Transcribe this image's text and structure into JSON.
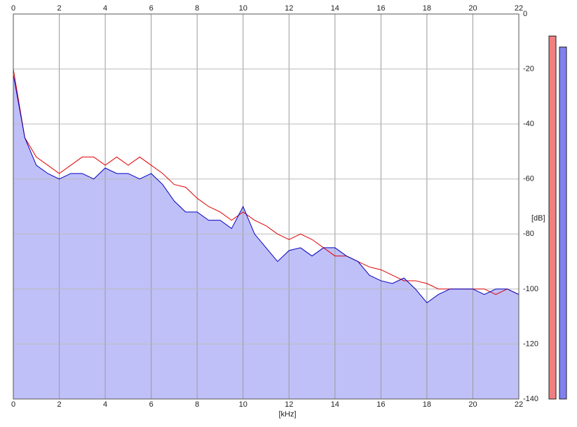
{
  "chart_data": {
    "type": "line",
    "x_label": "[kHz]",
    "y_label": "[dB]",
    "x": [
      0,
      0.5,
      1,
      1.5,
      2,
      2.5,
      3,
      3.5,
      4,
      4.5,
      5,
      5.5,
      6,
      6.5,
      7,
      7.5,
      8,
      8.5,
      9,
      9.5,
      10,
      10.5,
      11,
      11.5,
      12,
      12.5,
      13,
      13.5,
      14,
      14.5,
      15,
      15.5,
      16,
      16.5,
      17,
      17.5,
      18,
      18.5,
      19,
      19.5,
      20,
      20.5,
      21,
      21.5,
      22
    ],
    "series": [
      {
        "color": "#e00000",
        "values": [
          -20,
          -45,
          -52,
          -55,
          -58,
          -55,
          -52,
          -52,
          -55,
          -52,
          -55,
          -52,
          -55,
          -58,
          -62,
          -63,
          -67,
          -70,
          -72,
          -75,
          -72,
          -75,
          -77,
          -80,
          -82,
          -80,
          -82,
          -85,
          -88,
          -88,
          -90,
          -92,
          -93,
          -95,
          -97,
          -97,
          -98,
          -100,
          -100,
          -100,
          -100,
          -100,
          -102,
          -100,
          -102
        ]
      },
      {
        "color": "#0000c0",
        "fill": "#c0c0f8",
        "values": [
          -22,
          -45,
          -55,
          -58,
          -60,
          -58,
          -58,
          -60,
          -56,
          -58,
          -58,
          -60,
          -58,
          -62,
          -68,
          -72,
          -72,
          -75,
          -75,
          -78,
          -70,
          -80,
          -85,
          -90,
          -86,
          -85,
          -88,
          -85,
          -85,
          -88,
          -90,
          -95,
          -97,
          -98,
          -96,
          -100,
          -105,
          -102,
          -100,
          -100,
          -100,
          -102,
          -100,
          -100,
          -102
        ]
      }
    ],
    "meters": [
      {
        "color": "#f08080",
        "value": -8
      },
      {
        "color": "#8080f0",
        "value": -12
      }
    ],
    "xlim": [
      0,
      22
    ],
    "xticks": [
      0,
      2,
      4,
      6,
      8,
      10,
      12,
      14,
      16,
      18,
      20,
      22
    ],
    "ylim": [
      -140,
      0
    ],
    "yticks": [
      0,
      -20,
      -40,
      -60,
      -80,
      -100,
      -120,
      -140
    ],
    "grid": true
  }
}
